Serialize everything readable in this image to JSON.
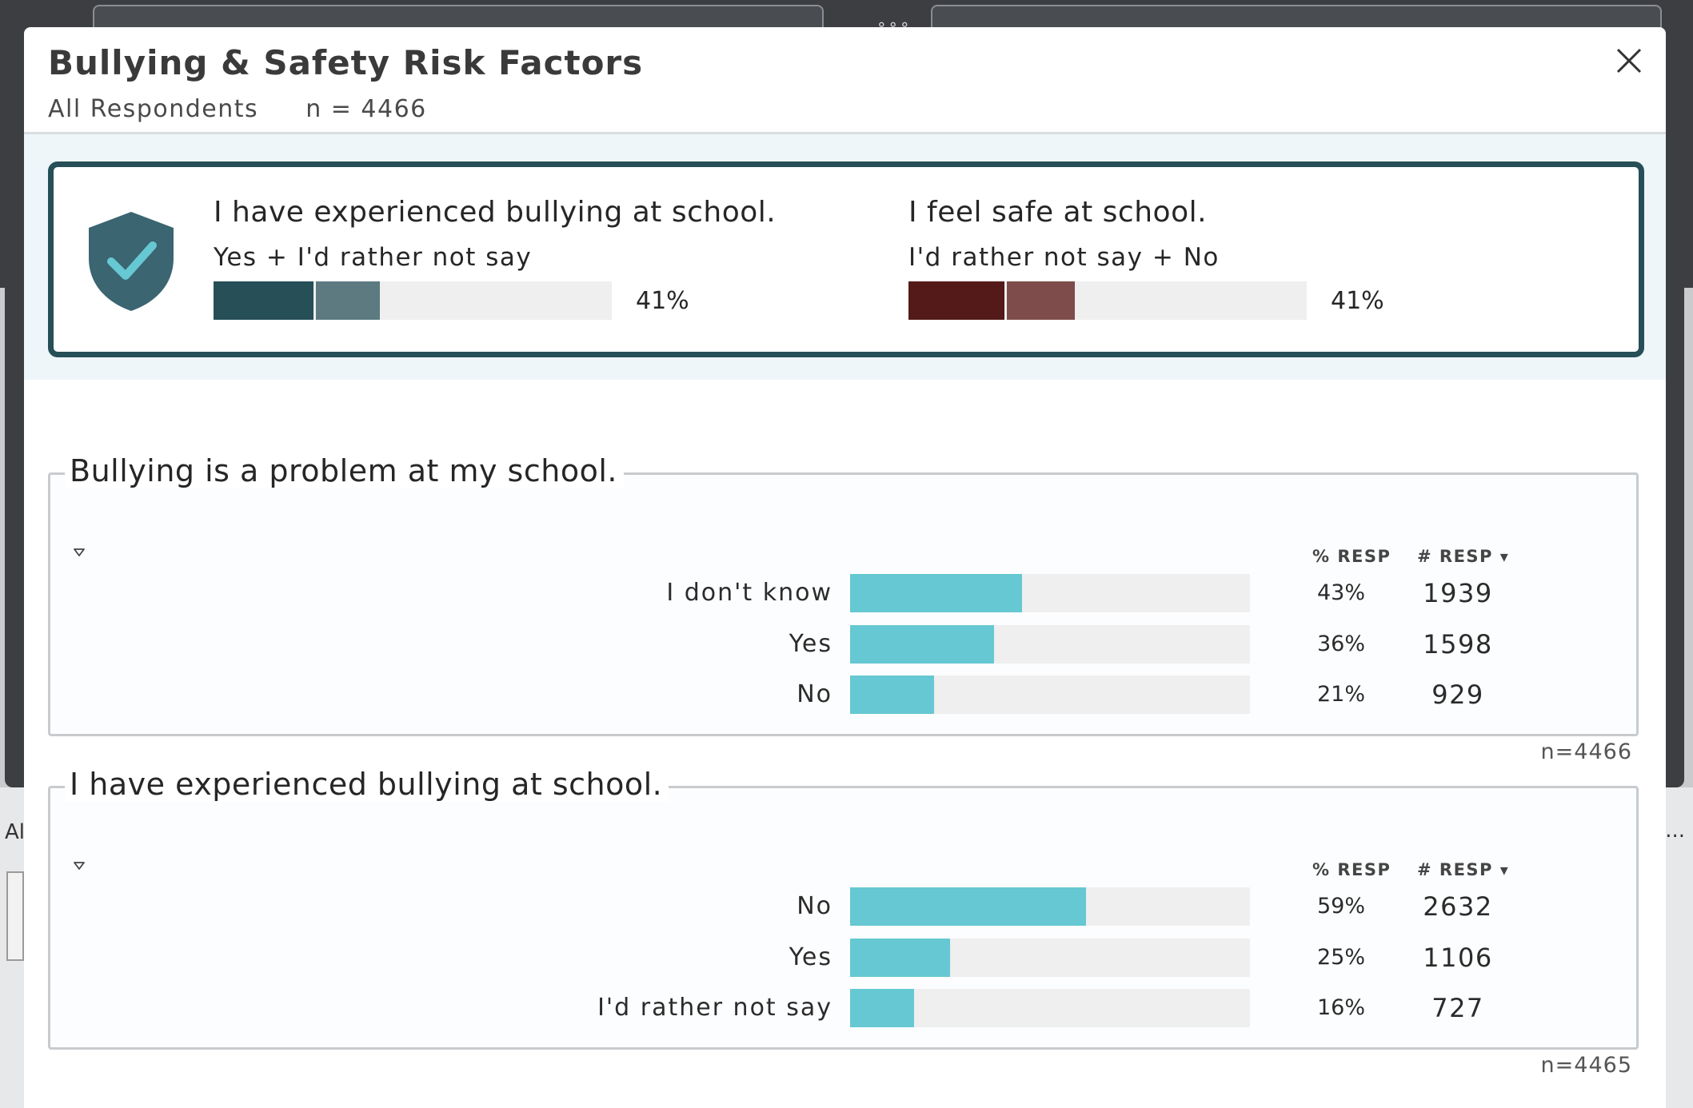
{
  "modal": {
    "title": "Bullying & Safety Risk Factors",
    "group": "All Respondents",
    "n": "n = 4466"
  },
  "summary": {
    "metrics": [
      {
        "question": "I have experienced bullying at school.",
        "subtitle": "Yes + I'd rather not say",
        "percent_label": "41%",
        "segments": [
          {
            "fraction": 0.25,
            "color": "#264f58"
          },
          {
            "fraction": 0.16,
            "color": "#5c7a80"
          }
        ]
      },
      {
        "question": "I feel safe at school.",
        "subtitle": "I'd rather not say + No",
        "percent_label": "41%",
        "segments": [
          {
            "fraction": 0.24,
            "color": "#541a19"
          },
          {
            "fraction": 0.17,
            "color": "#7d4c4b"
          }
        ]
      }
    ]
  },
  "columns": {
    "pct": "% RESP",
    "num": "# RESP"
  },
  "sections": [
    {
      "title": "Bullying is a problem at my school.",
      "n_note": "n=4466",
      "rows": [
        {
          "label": "I don't know",
          "pct": "43%",
          "value": 0.43,
          "count": "1939"
        },
        {
          "label": "Yes",
          "pct": "36%",
          "value": 0.36,
          "count": "1598"
        },
        {
          "label": "No",
          "pct": "21%",
          "value": 0.21,
          "count": "929"
        }
      ]
    },
    {
      "title": "I have experienced bullying at school.",
      "n_note": "n=4465",
      "rows": [
        {
          "label": "No",
          "pct": "59%",
          "value": 0.59,
          "count": "2632"
        },
        {
          "label": "Yes",
          "pct": "25%",
          "value": 0.25,
          "count": "1106"
        },
        {
          "label": "I'd rather not say",
          "pct": "16%",
          "value": 0.16,
          "count": "727"
        }
      ]
    }
  ],
  "colors": {
    "accent": "#264f58",
    "bar": "#66c8d2",
    "track": "#efefef"
  },
  "background": {
    "side_text": "Al",
    "side_more": "..."
  }
}
